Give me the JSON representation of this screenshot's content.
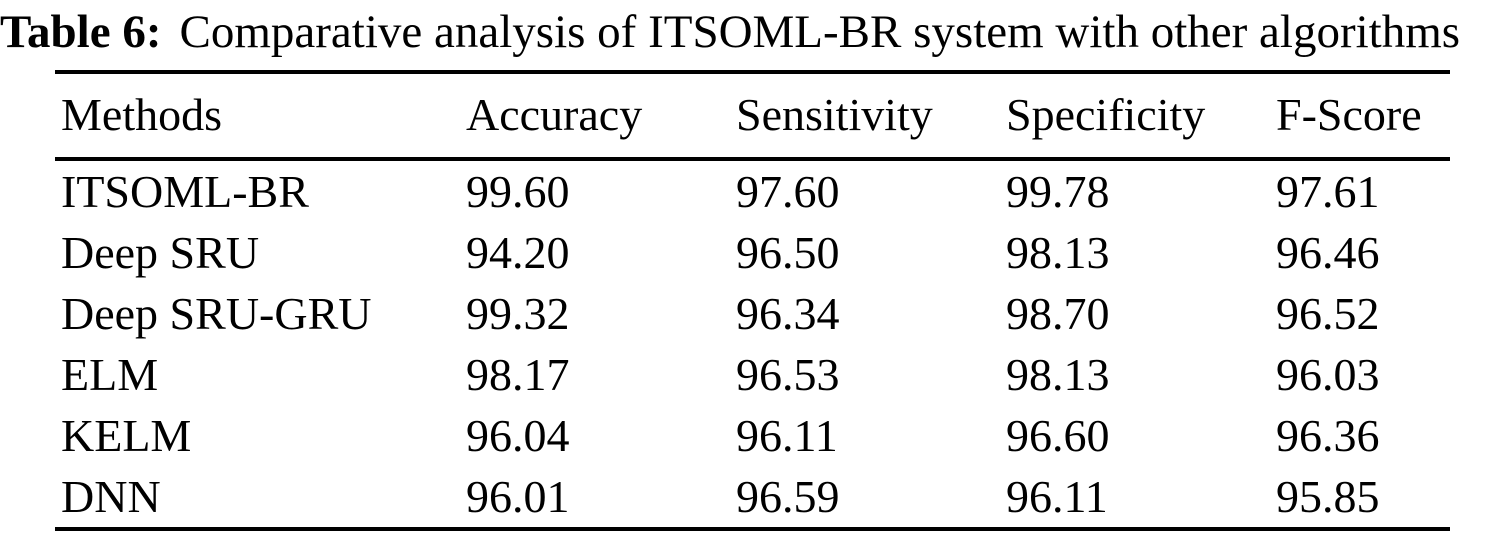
{
  "page": {
    "background_color": "#ffffff",
    "text_color": "#000000"
  },
  "caption": {
    "label": "Table 6:",
    "text": "Comparative analysis of ITSOML-BR system with other algorithms"
  },
  "table": {
    "headers": [
      "Methods",
      "Accuracy",
      "Sensitivity",
      "Specificity",
      "F-Score"
    ],
    "rows": [
      [
        "ITSOML-BR",
        "99.60",
        "97.60",
        "99.78",
        "97.61"
      ],
      [
        "Deep SRU",
        "94.20",
        "96.50",
        "98.13",
        "96.46"
      ],
      [
        "Deep SRU-GRU",
        "99.32",
        "96.34",
        "98.70",
        "96.52"
      ],
      [
        "ELM",
        "98.17",
        "96.53",
        "98.13",
        "96.03"
      ],
      [
        "KELM",
        "96.04",
        "96.11",
        "96.60",
        "96.36"
      ],
      [
        "DNN",
        "96.01",
        "96.59",
        "96.11",
        "95.85"
      ]
    ]
  }
}
